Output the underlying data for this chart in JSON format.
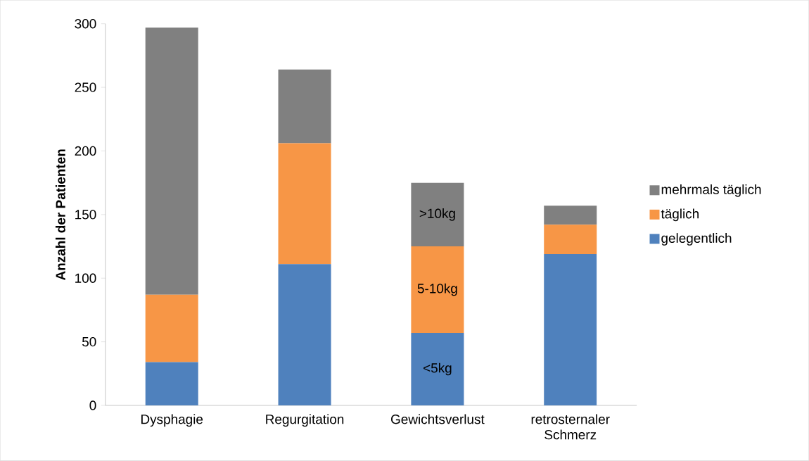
{
  "chart_data": {
    "type": "bar",
    "stacked": true,
    "ylabel": "Anzahl der Patienten",
    "categories": [
      "Dysphagie",
      "Regurgitation",
      "Gewichtsverlust",
      "retrosternaler Schmerz"
    ],
    "series": [
      {
        "name": "gelegentlich",
        "color": "#4f81bd",
        "values": [
          34,
          111,
          57,
          119
        ],
        "value_labels": [
          null,
          null,
          "<5kg",
          null
        ]
      },
      {
        "name": "täglich",
        "color": "#f79646",
        "values": [
          53,
          95,
          68,
          23
        ],
        "value_labels": [
          null,
          null,
          "5-10kg",
          null
        ]
      },
      {
        "name": "mehrmals täglich",
        "color": "#808080",
        "values": [
          210,
          58,
          50,
          15
        ],
        "value_labels": [
          null,
          null,
          ">10kg",
          null
        ]
      }
    ],
    "ylim": [
      0,
      300
    ],
    "yticks": [
      0,
      50,
      100,
      150,
      200,
      250,
      300
    ],
    "legend": "right"
  }
}
